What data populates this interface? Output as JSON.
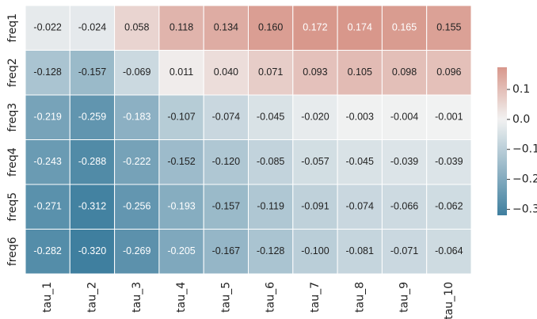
{
  "chart_data": {
    "type": "heatmap",
    "x": [
      "tau_1",
      "tau_2",
      "tau_3",
      "tau_4",
      "tau_5",
      "tau_6",
      "tau_7",
      "tau_8",
      "tau_9",
      "tau_10"
    ],
    "y": [
      "freq1",
      "freq2",
      "freq3",
      "freq4",
      "freq5",
      "freq6"
    ],
    "values": [
      [
        -0.022,
        -0.024,
        0.058,
        0.118,
        0.134,
        0.16,
        0.172,
        0.174,
        0.165,
        0.155
      ],
      [
        -0.128,
        -0.157,
        -0.069,
        0.011,
        0.04,
        0.071,
        0.093,
        0.105,
        0.098,
        0.096
      ],
      [
        -0.219,
        -0.259,
        -0.183,
        -0.107,
        -0.074,
        -0.045,
        -0.02,
        -0.003,
        -0.004,
        -0.001
      ],
      [
        -0.243,
        -0.288,
        -0.222,
        -0.152,
        -0.12,
        -0.085,
        -0.057,
        -0.045,
        -0.039,
        -0.039
      ],
      [
        -0.271,
        -0.312,
        -0.256,
        -0.193,
        -0.157,
        -0.119,
        -0.091,
        -0.074,
        -0.066,
        -0.062
      ],
      [
        -0.282,
        -0.32,
        -0.269,
        -0.205,
        -0.167,
        -0.128,
        -0.1,
        -0.081,
        -0.071,
        -0.064
      ]
    ],
    "value_labels": [
      [
        "-0.022",
        "-0.024",
        "0.058",
        "0.118",
        "0.134",
        "0.160",
        "0.172",
        "0.174",
        "0.165",
        "0.155"
      ],
      [
        "-0.128",
        "-0.157",
        "-0.069",
        "0.011",
        "0.040",
        "0.071",
        "0.093",
        "0.105",
        "0.098",
        "0.096"
      ],
      [
        "-0.219",
        "-0.259",
        "-0.183",
        "-0.107",
        "-0.074",
        "-0.045",
        "-0.020",
        "-0.003",
        "-0.004",
        "-0.001"
      ],
      [
        "-0.243",
        "-0.288",
        "-0.222",
        "-0.152",
        "-0.120",
        "-0.085",
        "-0.057",
        "-0.045",
        "-0.039",
        "-0.039"
      ],
      [
        "-0.271",
        "-0.312",
        "-0.256",
        "-0.193",
        "-0.157",
        "-0.119",
        "-0.091",
        "-0.074",
        "-0.066",
        "-0.062"
      ],
      [
        "-0.282",
        "-0.320",
        "-0.269",
        "-0.205",
        "-0.167",
        "-0.128",
        "-0.100",
        "-0.081",
        "-0.071",
        "-0.064"
      ]
    ],
    "clim": [
      -0.32,
      0.174
    ],
    "center": 0,
    "colors": [
      "#3f7f9f",
      "#f2f2f2",
      "#d8978b"
    ],
    "cticks": [
      {
        "value": 0.1,
        "label": "0.1"
      },
      {
        "value": 0,
        "label": "0.0"
      },
      {
        "value": -0.1,
        "label": "−0.1"
      },
      {
        "value": -0.2,
        "label": "−0.2"
      },
      {
        "value": -0.3,
        "label": "−0.3"
      }
    ]
  }
}
